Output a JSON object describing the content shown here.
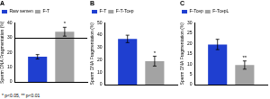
{
  "chart_data": [
    {
      "type": "bar",
      "title": "A",
      "y_label": "Sperm DNA Fragmentation (%)",
      "categories": [
        null
      ],
      "series": [
        {
          "name": "Raw semen",
          "color": "#1f3fd0",
          "values": [
            17
          ],
          "errors": [
            1.5
          ]
        },
        {
          "name": "F-T",
          "color": "#a3a3a3",
          "values": [
            34
          ],
          "errors": [
            3
          ],
          "annotations": [
            "*"
          ]
        }
      ],
      "reference_line": 30,
      "footnote": "* p<0.05, ** p<0.01",
      "ylim": [
        0,
        40
      ],
      "yticks": [
        0,
        10,
        20,
        30,
        40
      ],
      "grid": false,
      "legend": "upper left",
      "tick_labels": "y"
    },
    {
      "type": "bar",
      "title": "B",
      "y_label": "Sperm DNA Fragmentation (%)",
      "categories": [
        null
      ],
      "series": [
        {
          "name": "F-T",
          "color": "#1f3fd0",
          "values": [
            37
          ],
          "errors": [
            3
          ]
        },
        {
          "name": "F-T-Tcep",
          "color": "#a3a3a3",
          "values": [
            19
          ],
          "errors": [
            4
          ],
          "annotations": [
            "*"
          ]
        }
      ],
      "ylim": [
        0,
        50
      ],
      "yticks": [
        0,
        10,
        20,
        30,
        40,
        50
      ],
      "grid": false,
      "legend": "upper left",
      "tick_labels": "y"
    },
    {
      "type": "bar",
      "title": "C",
      "y_label": "Sperm DNA Fragmentation (%)",
      "categories": [
        null
      ],
      "series": [
        {
          "name": "F-Tcep",
          "color": "#1f3fd0",
          "values": [
            19.5
          ],
          "errors": [
            2.5
          ]
        },
        {
          "name": "F-TcepL",
          "color": "#a3a3a3",
          "values": [
            9.5
          ],
          "errors": [
            2
          ],
          "annotations": [
            "**"
          ]
        }
      ],
      "ylim": [
        0,
        30
      ],
      "yticks": [
        0,
        5,
        10,
        15,
        20,
        25,
        30
      ],
      "grid": false,
      "legend": "upper left",
      "tick_labels": "y"
    }
  ]
}
